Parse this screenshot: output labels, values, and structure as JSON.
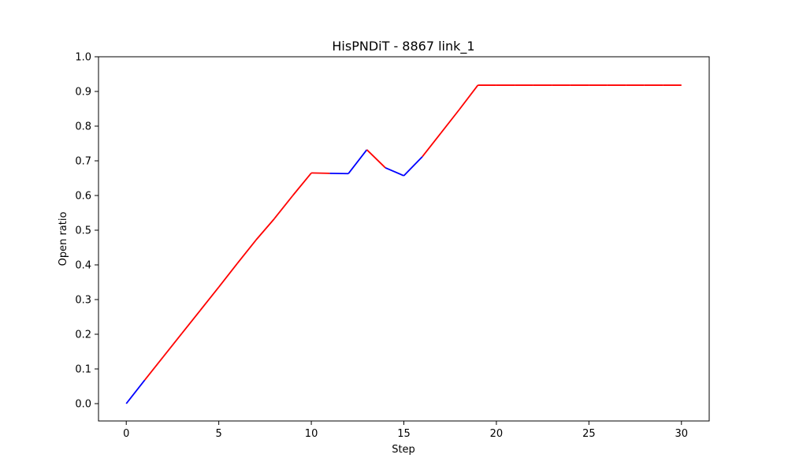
{
  "chart_data": {
    "type": "line",
    "title": "HisPNDiT - 8867 link_1",
    "xlabel": "Step",
    "ylabel": "Open ratio",
    "xlim": [
      -1.5,
      31.5
    ],
    "ylim": [
      -0.05,
      1.0
    ],
    "xticks": [
      0,
      5,
      10,
      15,
      20,
      25,
      30
    ],
    "yticks": [
      0.0,
      0.1,
      0.2,
      0.3,
      0.4,
      0.5,
      0.6,
      0.7,
      0.8,
      0.9,
      1.0
    ],
    "x": [
      0,
      1,
      2,
      3,
      4,
      5,
      6,
      7,
      8,
      9,
      10,
      11,
      12,
      13,
      14,
      15,
      16,
      17,
      18,
      19,
      20,
      21,
      22,
      23,
      24,
      25,
      26,
      27,
      28,
      29,
      30
    ],
    "y": [
      0.0,
      0.068,
      0.135,
      0.202,
      0.269,
      0.336,
      0.404,
      0.471,
      0.533,
      0.6,
      0.665,
      0.664,
      0.663,
      0.732,
      0.68,
      0.657,
      0.712,
      0.78,
      0.848,
      0.918,
      0.918,
      0.918,
      0.918,
      0.918,
      0.918,
      0.918,
      0.918,
      0.918,
      0.918,
      0.918,
      0.918
    ],
    "segment_colors": [
      "blue",
      "red",
      "red",
      "red",
      "red",
      "red",
      "red",
      "red",
      "red",
      "red",
      "red",
      "blue",
      "blue",
      "red",
      "blue",
      "blue",
      "red",
      "red",
      "red",
      "red",
      "red",
      "red",
      "red",
      "red",
      "red",
      "red",
      "red",
      "red",
      "red",
      "red"
    ],
    "colors": {
      "blue": "#0000ff",
      "red": "#ff0000"
    },
    "grid": false
  }
}
